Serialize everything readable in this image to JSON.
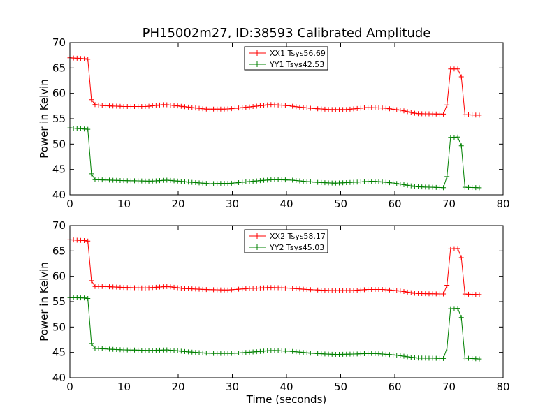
{
  "chart_data": {
    "title": "PH15002m27, ID:38593 Calibrated Amplitude",
    "xlabel": "Time (seconds)",
    "type": "line",
    "x_note": "Sample times run 0.0 to 75.6 s at ~0.66 s spacing",
    "panels": [
      {
        "type": "line",
        "ylabel": "Power in Kelvin",
        "xlim": [
          0,
          80
        ],
        "ylim": [
          40,
          70
        ],
        "x_ticks": [
          0,
          10,
          20,
          30,
          40,
          50,
          60,
          70,
          80
        ],
        "y_ticks": [
          40,
          45,
          50,
          55,
          60,
          65,
          70
        ],
        "legend_position": "upper center",
        "series": [
          {
            "name": "XX1 Tsys56.69",
            "color": "#ff0000",
            "keypoints": [
              [
                0,
                67.0
              ],
              [
                3.2,
                66.8
              ],
              [
                3.6,
                66.5
              ],
              [
                3.95,
                58.8
              ],
              [
                4.6,
                57.8
              ],
              [
                6,
                57.6
              ],
              [
                10,
                57.4
              ],
              [
                14,
                57.4
              ],
              [
                17.5,
                57.8
              ],
              [
                21,
                57.4
              ],
              [
                25,
                56.9
              ],
              [
                29,
                56.9
              ],
              [
                33,
                57.3
              ],
              [
                37,
                57.8
              ],
              [
                40,
                57.6
              ],
              [
                44,
                57.1
              ],
              [
                48,
                56.8
              ],
              [
                51,
                56.8
              ],
              [
                55,
                57.2
              ],
              [
                58,
                57.1
              ],
              [
                61,
                56.7
              ],
              [
                64,
                56.0
              ],
              [
                69.4,
                55.9
              ],
              [
                69.7,
                58.2
              ],
              [
                70.1,
                64.8
              ],
              [
                72.0,
                64.8
              ],
              [
                72.3,
                63.2
              ],
              [
                72.7,
                55.8
              ],
              [
                75.6,
                55.7
              ]
            ]
          },
          {
            "name": "YY1 Tsys42.53",
            "color": "#008000",
            "keypoints": [
              [
                0,
                53.2
              ],
              [
                3.6,
                52.9
              ],
              [
                3.95,
                44.2
              ],
              [
                4.6,
                43.0
              ],
              [
                10,
                42.8
              ],
              [
                15,
                42.7
              ],
              [
                18,
                42.9
              ],
              [
                22,
                42.5
              ],
              [
                26,
                42.2
              ],
              [
                30,
                42.3
              ],
              [
                34,
                42.7
              ],
              [
                37.5,
                43.0
              ],
              [
                41,
                42.9
              ],
              [
                45,
                42.5
              ],
              [
                49,
                42.3
              ],
              [
                53,
                42.5
              ],
              [
                56,
                42.7
              ],
              [
                60,
                42.3
              ],
              [
                64,
                41.6
              ],
              [
                69.4,
                41.4
              ],
              [
                69.7,
                44.2
              ],
              [
                70.1,
                51.3
              ],
              [
                72.0,
                51.4
              ],
              [
                72.3,
                49.6
              ],
              [
                72.7,
                41.5
              ],
              [
                75.6,
                41.4
              ]
            ]
          }
        ]
      },
      {
        "type": "line",
        "ylabel": "Power in Kelvin",
        "xlabel": "Time (seconds)",
        "xlim": [
          0,
          80
        ],
        "ylim": [
          40,
          70
        ],
        "x_ticks": [
          0,
          10,
          20,
          30,
          40,
          50,
          60,
          70,
          80
        ],
        "y_ticks": [
          40,
          45,
          50,
          55,
          60,
          65,
          70
        ],
        "legend_position": "upper center",
        "series": [
          {
            "name": "XX2 Tsys58.17",
            "color": "#ff0000",
            "keypoints": [
              [
                0,
                67.2
              ],
              [
                3.2,
                67.0
              ],
              [
                3.6,
                66.8
              ],
              [
                3.95,
                59.2
              ],
              [
                4.6,
                58.0
              ],
              [
                6,
                58.0
              ],
              [
                10,
                57.8
              ],
              [
                14,
                57.7
              ],
              [
                18,
                58.0
              ],
              [
                21,
                57.6
              ],
              [
                25,
                57.4
              ],
              [
                29,
                57.3
              ],
              [
                33,
                57.6
              ],
              [
                37,
                57.8
              ],
              [
                40,
                57.7
              ],
              [
                44,
                57.4
              ],
              [
                48,
                57.2
              ],
              [
                52,
                57.2
              ],
              [
                55,
                57.4
              ],
              [
                58,
                57.4
              ],
              [
                61,
                57.1
              ],
              [
                64,
                56.6
              ],
              [
                69.4,
                56.5
              ],
              [
                69.7,
                58.7
              ],
              [
                70.1,
                65.4
              ],
              [
                72.0,
                65.5
              ],
              [
                72.3,
                63.6
              ],
              [
                72.7,
                56.5
              ],
              [
                75.6,
                56.4
              ]
            ]
          },
          {
            "name": "YY2 Tsys45.03",
            "color": "#008000",
            "keypoints": [
              [
                0,
                55.8
              ],
              [
                3.2,
                55.7
              ],
              [
                3.6,
                55.4
              ],
              [
                3.95,
                46.8
              ],
              [
                4.6,
                45.8
              ],
              [
                10,
                45.5
              ],
              [
                15,
                45.4
              ],
              [
                18,
                45.5
              ],
              [
                22,
                45.1
              ],
              [
                26,
                44.8
              ],
              [
                30,
                44.8
              ],
              [
                34,
                45.1
              ],
              [
                37.5,
                45.4
              ],
              [
                41,
                45.2
              ],
              [
                45,
                44.8
              ],
              [
                49,
                44.6
              ],
              [
                53,
                44.7
              ],
              [
                56,
                44.8
              ],
              [
                60,
                44.5
              ],
              [
                64,
                43.9
              ],
              [
                69.4,
                43.8
              ],
              [
                69.7,
                46.4
              ],
              [
                70.1,
                53.6
              ],
              [
                72.0,
                53.7
              ],
              [
                72.3,
                51.8
              ],
              [
                72.7,
                43.9
              ],
              [
                75.6,
                43.7
              ]
            ]
          }
        ]
      }
    ]
  }
}
